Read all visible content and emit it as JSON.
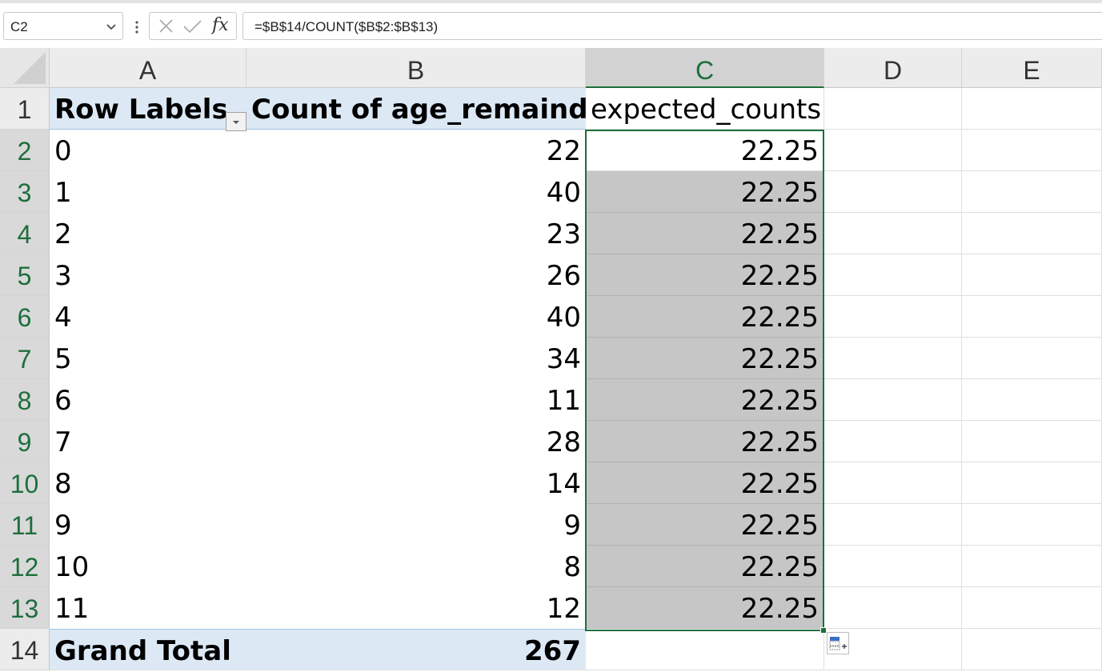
{
  "formula_bar": {
    "name_box": "C2",
    "formula": "=$B$14/COUNT($B$2:$B$13)",
    "fx_label": "fx"
  },
  "columns": [
    "A",
    "B",
    "C",
    "D",
    "E"
  ],
  "selected_column": "C",
  "rows": [
    "1",
    "2",
    "3",
    "4",
    "5",
    "6",
    "7",
    "8",
    "9",
    "10",
    "11",
    "12",
    "13",
    "14"
  ],
  "pivot": {
    "header_labels": "Row Labels",
    "header_count": "Count of age_remainder",
    "header_expected": "expected_counts",
    "data": [
      {
        "label": "0",
        "count": "22",
        "expected": "22.25"
      },
      {
        "label": "1",
        "count": "40",
        "expected": "22.25"
      },
      {
        "label": "2",
        "count": "23",
        "expected": "22.25"
      },
      {
        "label": "3",
        "count": "26",
        "expected": "22.25"
      },
      {
        "label": "4",
        "count": "40",
        "expected": "22.25"
      },
      {
        "label": "5",
        "count": "34",
        "expected": "22.25"
      },
      {
        "label": "6",
        "count": "11",
        "expected": "22.25"
      },
      {
        "label": "7",
        "count": "28",
        "expected": "22.25"
      },
      {
        "label": "8",
        "count": "14",
        "expected": "22.25"
      },
      {
        "label": "9",
        "count": "9",
        "expected": "22.25"
      },
      {
        "label": "10",
        "count": "8",
        "expected": "22.25"
      },
      {
        "label": "11",
        "count": "12",
        "expected": "22.25"
      }
    ],
    "total_label": "Grand Total",
    "total_count": "267"
  },
  "colors": {
    "accent": "#1e6e3c",
    "pivot_header_fill": "#dce9f5",
    "selection_shade": "#c6c6c6"
  }
}
